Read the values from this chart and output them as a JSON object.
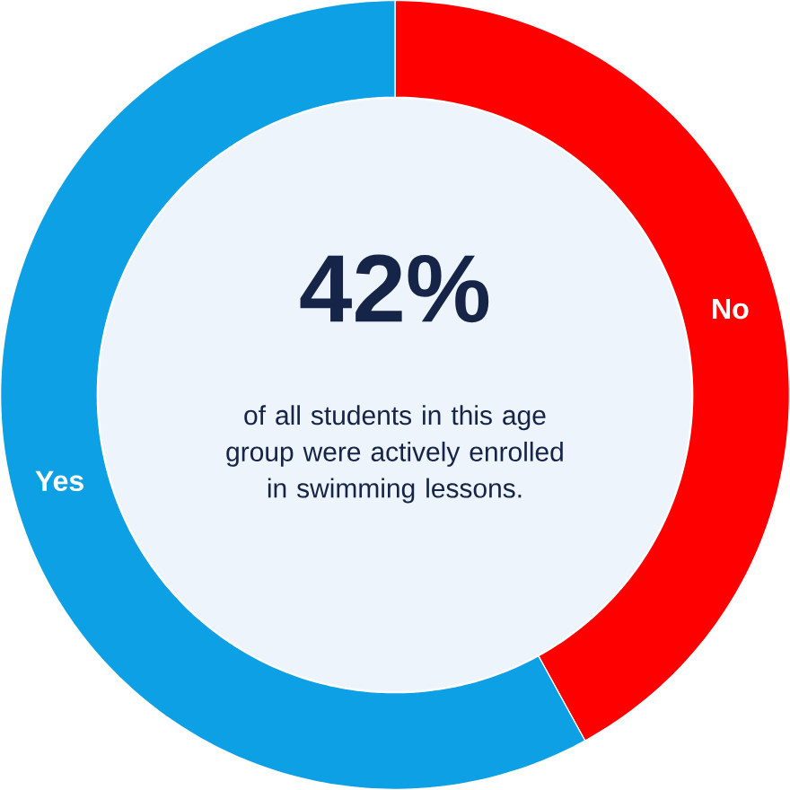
{
  "chart_data": {
    "type": "donut",
    "categories": [
      "No",
      "Yes"
    ],
    "values": [
      42,
      58
    ],
    "colors": [
      "#ff0000",
      "#0ea0e4"
    ],
    "annotations": [
      "42%",
      "of all students in this age group were actively enrolled in swimming lessons."
    ]
  }
}
